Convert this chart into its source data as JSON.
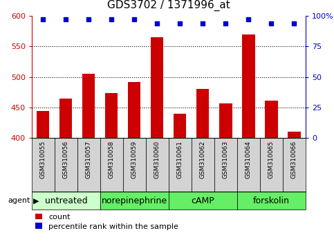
{
  "title": "GDS3702 / 1371996_at",
  "samples": [
    "GSM310055",
    "GSM310056",
    "GSM310057",
    "GSM310058",
    "GSM310059",
    "GSM310060",
    "GSM310061",
    "GSM310062",
    "GSM310063",
    "GSM310064",
    "GSM310065",
    "GSM310066"
  ],
  "counts": [
    444,
    464,
    505,
    474,
    492,
    565,
    440,
    480,
    456,
    569,
    461,
    410
  ],
  "percentiles": [
    97,
    97,
    97,
    97,
    97,
    94,
    94,
    94,
    94,
    97,
    94,
    94
  ],
  "agents": [
    {
      "label": "untreated",
      "start": 0,
      "end": 3,
      "color": "#ccffcc"
    },
    {
      "label": "norepinephrine",
      "start": 3,
      "end": 6,
      "color": "#66ee66"
    },
    {
      "label": "cAMP",
      "start": 6,
      "end": 9,
      "color": "#66ee66"
    },
    {
      "label": "forskolin",
      "start": 9,
      "end": 12,
      "color": "#66ee66"
    }
  ],
  "ylim_left": [
    400,
    600
  ],
  "ylim_right": [
    0,
    100
  ],
  "yticks_left": [
    400,
    450,
    500,
    550,
    600
  ],
  "yticks_right": [
    0,
    25,
    50,
    75,
    100
  ],
  "ytick_labels_right": [
    "0",
    "25",
    "50",
    "75",
    "100%"
  ],
  "bar_color": "#cc0000",
  "scatter_color": "#0000cc",
  "sample_bg_color": "#d3d3d3",
  "title_fontsize": 11,
  "tick_fontsize": 8,
  "sample_fontsize": 6.5,
  "agent_label_fontsize": 9,
  "legend_fontsize": 8
}
